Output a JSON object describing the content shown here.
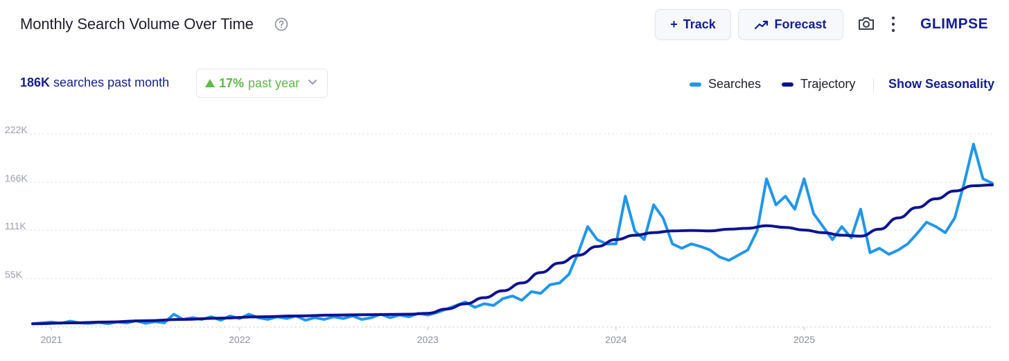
{
  "header": {
    "title": "Monthly Search Volume Over Time",
    "track_label": "Track",
    "track_icon": "+",
    "forecast_label": "Forecast",
    "logo": "GLIMPSE"
  },
  "summary": {
    "value": "186K",
    "text": "searches past month",
    "change_value": "17%",
    "change_text": "past year"
  },
  "legend": {
    "searches": "Searches",
    "trajectory": "Trajectory",
    "seasonality_link": "Show Seasonality"
  },
  "colors": {
    "searches": "#2196ea",
    "trajectory": "#0d1390",
    "accent": "#131f8f",
    "positive": "#5fb84a"
  },
  "chart_data": {
    "type": "line",
    "title": "Monthly Search Volume Over Time",
    "xlabel": "",
    "ylabel": "",
    "x_tick_labels": [
      "2021",
      "2022",
      "2023",
      "2024",
      "2025"
    ],
    "y_tick_labels": [
      "222K",
      "166K",
      "111K",
      "55K"
    ],
    "y_ticks": [
      222000,
      166000,
      111000,
      55000
    ],
    "ylim": [
      0,
      222000
    ],
    "xlim": [
      2020.9,
      2026.0
    ],
    "grid": true,
    "legend_position": "top-right",
    "series": [
      {
        "name": "Searches",
        "x": [
          2020.9,
          2021.0,
          2021.05,
          2021.1,
          2021.15,
          2021.2,
          2021.25,
          2021.3,
          2021.35,
          2021.4,
          2021.45,
          2021.5,
          2021.55,
          2021.6,
          2021.65,
          2021.7,
          2021.75,
          2021.8,
          2021.85,
          2021.9,
          2021.95,
          2022.0,
          2022.05,
          2022.1,
          2022.15,
          2022.2,
          2022.25,
          2022.3,
          2022.35,
          2022.4,
          2022.45,
          2022.5,
          2022.55,
          2022.6,
          2022.65,
          2022.7,
          2022.75,
          2022.8,
          2022.85,
          2022.9,
          2022.95,
          2023.0,
          2023.05,
          2023.1,
          2023.15,
          2023.2,
          2023.25,
          2023.3,
          2023.35,
          2023.4,
          2023.45,
          2023.5,
          2023.55,
          2023.6,
          2023.65,
          2023.7,
          2023.75,
          2023.8,
          2023.85,
          2023.9,
          2023.95,
          2024.0,
          2024.05,
          2024.1,
          2024.15,
          2024.2,
          2024.25,
          2024.3,
          2024.35,
          2024.4,
          2024.45,
          2024.5,
          2024.55,
          2024.6,
          2024.65,
          2024.7,
          2024.75,
          2024.8,
          2024.85,
          2024.9,
          2024.95,
          2025.0,
          2025.05,
          2025.1,
          2025.15,
          2025.2,
          2025.25,
          2025.3,
          2025.35,
          2025.4,
          2025.45,
          2025.5,
          2025.55,
          2025.6,
          2025.65,
          2025.7,
          2025.75,
          2025.8,
          2025.85,
          2025.9,
          2025.95,
          2026.0
        ],
        "y": [
          3000,
          5000,
          3500,
          6000,
          4000,
          3500,
          4500,
          3000,
          5000,
          4000,
          6500,
          3500,
          5500,
          4000,
          14000,
          8000,
          10000,
          8000,
          11000,
          7000,
          12000,
          9000,
          14000,
          10000,
          8000,
          11000,
          9000,
          12000,
          7000,
          10000,
          8000,
          11000,
          9000,
          12000,
          8000,
          10000,
          14000,
          10000,
          13000,
          11000,
          15000,
          13000,
          16000,
          20000,
          24000,
          28000,
          22000,
          26000,
          24000,
          32000,
          35000,
          30000,
          40000,
          38000,
          48000,
          50000,
          60000,
          85000,
          115000,
          100000,
          95000,
          95000,
          150000,
          110000,
          100000,
          140000,
          125000,
          95000,
          90000,
          95000,
          92000,
          88000,
          80000,
          76000,
          82000,
          88000,
          110000,
          170000,
          140000,
          150000,
          135000,
          170000,
          130000,
          115000,
          100000,
          115000,
          102000,
          135000,
          85000,
          90000,
          83000,
          88000,
          95000,
          107000,
          120000,
          115000,
          108000,
          125000,
          165000,
          210000,
          170000,
          165000
        ]
      },
      {
        "name": "Trajectory",
        "x": [
          2020.9,
          2021.1,
          2021.3,
          2021.5,
          2021.7,
          2021.9,
          2022.1,
          2022.3,
          2022.5,
          2022.7,
          2022.9,
          2023.0,
          2023.1,
          2023.2,
          2023.3,
          2023.4,
          2023.5,
          2023.6,
          2023.7,
          2023.8,
          2023.9,
          2024.0,
          2024.1,
          2024.2,
          2024.3,
          2024.4,
          2024.5,
          2024.6,
          2024.7,
          2024.8,
          2024.9,
          2025.0,
          2025.1,
          2025.2,
          2025.3,
          2025.4,
          2025.5,
          2025.6,
          2025.7,
          2025.8,
          2025.9,
          2026.0
        ],
        "y": [
          3000,
          4000,
          5000,
          6500,
          8000,
          9500,
          11000,
          12000,
          13000,
          13500,
          14000,
          15000,
          20000,
          26000,
          33000,
          41000,
          50000,
          62000,
          73000,
          82000,
          92000,
          100000,
          105000,
          108000,
          110000,
          110500,
          110000,
          112000,
          113000,
          116000,
          114000,
          111000,
          108000,
          105000,
          104000,
          112000,
          125000,
          137000,
          147000,
          156000,
          162000,
          163000
        ]
      }
    ]
  }
}
